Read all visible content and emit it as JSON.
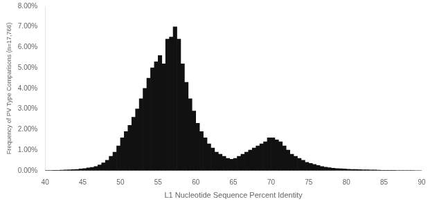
{
  "chart_data": {
    "type": "histogram",
    "xlabel": "L1 Nucleotide Sequence Percent Identity",
    "ylabel": "Frequency of PV Type Comparisons (n=17,766)",
    "bins": [
      40,
      40.5,
      41,
      41.5,
      42,
      42.5,
      43,
      43.5,
      44,
      44.5,
      45,
      45.5,
      46,
      46.5,
      47,
      47.5,
      48,
      48.5,
      49,
      49.5,
      50,
      50.5,
      51,
      51.5,
      52,
      52.5,
      53,
      53.5,
      54,
      54.5,
      55,
      55.5,
      56,
      56.5,
      57,
      57.5,
      58,
      58.5,
      59,
      59.5,
      60,
      60.5,
      61,
      61.5,
      62,
      62.5,
      63,
      63.5,
      64,
      64.5,
      65,
      65.5,
      66,
      66.5,
      67,
      67.5,
      68,
      68.5,
      69,
      69.5,
      70,
      70.5,
      71,
      71.5,
      72,
      72.5,
      73,
      73.5,
      74,
      74.5,
      75,
      75.5,
      76,
      76.5,
      77,
      77.5,
      78,
      78.5,
      79,
      79.5,
      80,
      80.5,
      81,
      81.5,
      82,
      82.5,
      83,
      83.5,
      84,
      84.5,
      85,
      85.5,
      86,
      86.5,
      87,
      87.5,
      88,
      88.5,
      89,
      89.5,
      90
    ],
    "values": [
      5e-05,
      0.0001,
      0.00015,
      0.0002,
      0.00025,
      0.0003,
      0.0004,
      0.0005,
      0.0006,
      0.0008,
      0.001,
      0.0013,
      0.0016,
      0.002,
      0.0028,
      0.0038,
      0.005,
      0.007,
      0.009,
      0.012,
      0.016,
      0.019,
      0.022,
      0.026,
      0.03,
      0.035,
      0.04,
      0.045,
      0.05,
      0.053,
      0.056,
      0.052,
      0.064,
      0.065,
      0.07,
      0.064,
      0.052,
      0.043,
      0.035,
      0.029,
      0.023,
      0.019,
      0.016,
      0.013,
      0.011,
      0.009,
      0.008,
      0.007,
      0.006,
      0.0055,
      0.006,
      0.007,
      0.008,
      0.009,
      0.01,
      0.011,
      0.012,
      0.013,
      0.014,
      0.016,
      0.016,
      0.015,
      0.014,
      0.012,
      0.01,
      0.008,
      0.007,
      0.006,
      0.005,
      0.004,
      0.0035,
      0.003,
      0.0025,
      0.002,
      0.0017,
      0.0014,
      0.0012,
      0.001,
      0.0009,
      0.0008,
      0.0007,
      0.0006,
      0.00055,
      0.0005,
      0.00045,
      0.0004,
      0.00035,
      0.0003,
      0.00025,
      0.0002,
      0.00018,
      0.00015,
      0.00012,
      0.0001,
      8e-05,
      6e-05,
      5e-05,
      4e-05,
      3e-05,
      2e-05
    ],
    "color": "#111111",
    "xlim": [
      40,
      90
    ],
    "xticks": [
      40,
      45,
      50,
      55,
      60,
      65,
      70,
      75,
      80,
      85,
      90
    ],
    "ylim": [
      0,
      0.08
    ],
    "yticks": [
      {
        "value": 0,
        "label": "0.00%"
      },
      {
        "value": 0.01,
        "label": "1.00%"
      },
      {
        "value": 0.02,
        "label": "2.00%"
      },
      {
        "value": 0.03,
        "label": "3.00%"
      },
      {
        "value": 0.04,
        "label": "4.00%"
      },
      {
        "value": 0.05,
        "label": "5.00%"
      },
      {
        "value": 0.06,
        "label": "6.00%"
      },
      {
        "value": 0.07,
        "label": "7.00%"
      },
      {
        "value": 0.08,
        "label": "8.00%"
      }
    ],
    "grid": false
  }
}
